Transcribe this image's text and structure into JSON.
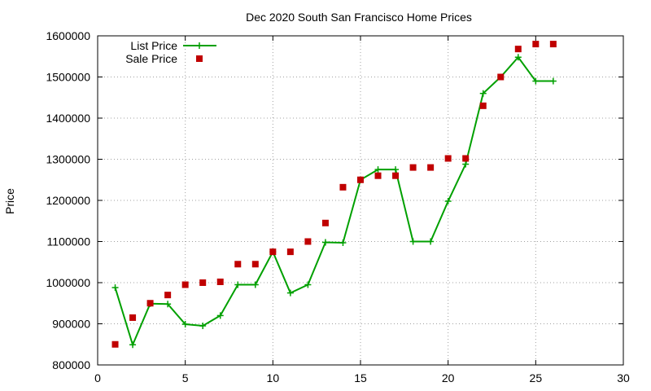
{
  "chart_data": {
    "type": "line",
    "title": "Dec 2020 South San Francisco Home Prices",
    "xlabel": "",
    "ylabel": "Price",
    "xlim": [
      0,
      30
    ],
    "ylim": [
      800000,
      1600000
    ],
    "xticks": [
      0,
      5,
      10,
      15,
      20,
      25,
      30
    ],
    "yticks": [
      800000,
      900000,
      1000000,
      1100000,
      1200000,
      1300000,
      1400000,
      1500000,
      1600000
    ],
    "grid": true,
    "legend_position": "top-left",
    "x": [
      1,
      2,
      3,
      4,
      5,
      6,
      7,
      8,
      9,
      10,
      11,
      12,
      13,
      14,
      15,
      16,
      17,
      18,
      19,
      20,
      21,
      22,
      23,
      24,
      25,
      26
    ],
    "series": [
      {
        "name": "List Price",
        "style": "line-plus",
        "color": "#00a000",
        "values": [
          988000,
          849000,
          949000,
          948000,
          899000,
          895000,
          920000,
          995000,
          995000,
          1075000,
          975000,
          995000,
          1098000,
          1097000,
          1250000,
          1275000,
          1275000,
          1100000,
          1100000,
          1198000,
          1288000,
          1460000,
          1500000,
          1548000,
          1490000,
          1490000
        ]
      },
      {
        "name": "Sale Price",
        "style": "square-points",
        "color": "#c00000",
        "values": [
          850000,
          915000,
          950000,
          970000,
          995000,
          1000000,
          1002000,
          1045000,
          1045000,
          1075000,
          1075000,
          1100000,
          1145000,
          1232000,
          1250000,
          1260000,
          1260000,
          1280000,
          1280000,
          1302000,
          1302000,
          1430000,
          1500000,
          1568000,
          1580000,
          1580000
        ]
      }
    ]
  }
}
